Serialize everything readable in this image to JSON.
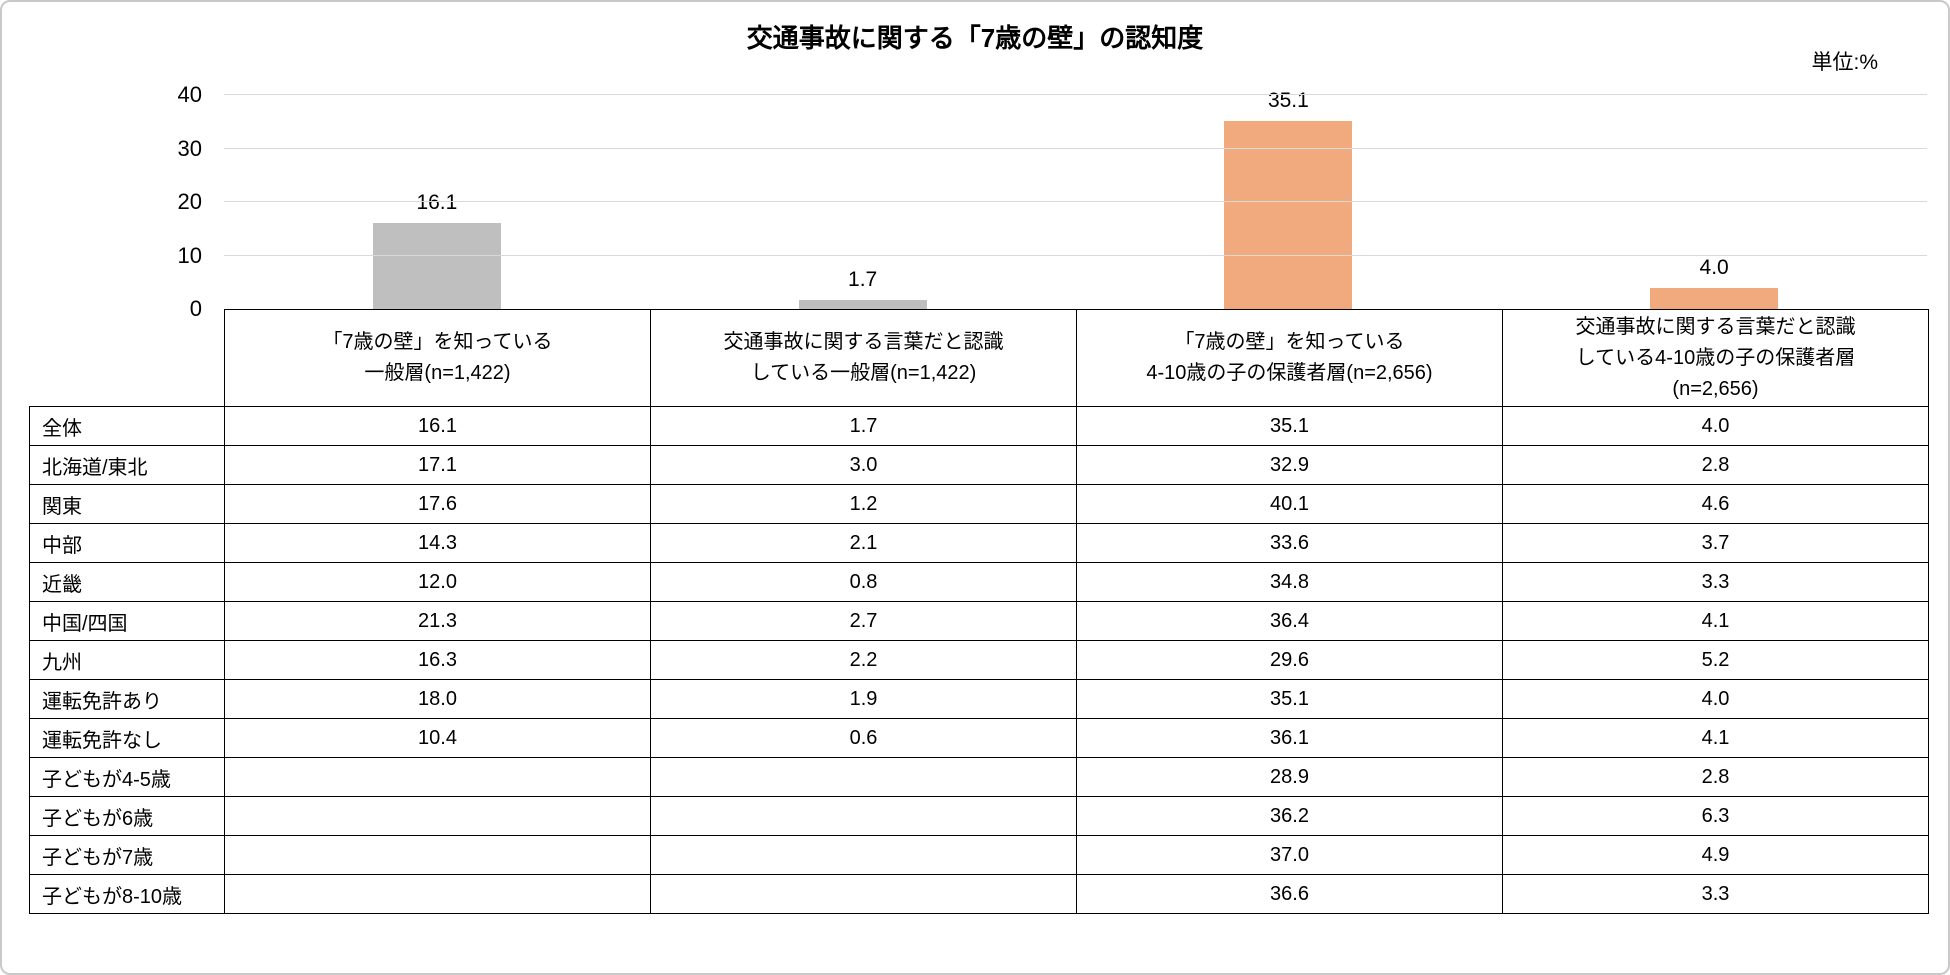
{
  "page": {
    "title": "交通事故に関する「7歳の壁」の認知度",
    "unit_label": "単位:%"
  },
  "chart_data": {
    "type": "bar",
    "title": "交通事故に関する「7歳の壁」の認知度",
    "unit": "単位:%",
    "categories": [
      "「7歳の壁」を知っている一般層(n=1,422)",
      "交通事故に関する言葉だと認識している一般層(n=1,422)",
      "「7歳の壁」を知っている4-10歳の子の保護者層(n=2,656)",
      "交通事故に関する言葉だと認識している4-10歳の子の保護者層(n=2,656)"
    ],
    "values": [
      16.1,
      1.7,
      35.1,
      4.0
    ],
    "bar_colors": [
      "#BFBFBF",
      "#BFBFBF",
      "#F1A97E",
      "#F1A97E"
    ],
    "ylim": [
      0,
      40
    ],
    "yticks": [
      0,
      10,
      20,
      30,
      40
    ],
    "grid": true,
    "gridline_color": "#D9D9D9",
    "legend": "none"
  },
  "table": {
    "header_lines": [
      [
        "「7歳の壁」を知っている",
        "一般層(n=1,422)"
      ],
      [
        "交通事故に関する言葉だと認識",
        "している一般層(n=1,422)"
      ],
      [
        "「7歳の壁」を知っている",
        "4-10歳の子の保護者層(n=2,656)"
      ],
      [
        "交通事故に関する言葉だと認識",
        "している4-10歳の子の保護者層",
        "(n=2,656)"
      ]
    ],
    "rows": [
      {
        "label": "全体",
        "values": [
          "16.1",
          "1.7",
          "35.1",
          "4.0"
        ]
      },
      {
        "label": "北海道/東北",
        "values": [
          "17.1",
          "3.0",
          "32.9",
          "2.8"
        ]
      },
      {
        "label": "関東",
        "values": [
          "17.6",
          "1.2",
          "40.1",
          "4.6"
        ]
      },
      {
        "label": "中部",
        "values": [
          "14.3",
          "2.1",
          "33.6",
          "3.7"
        ]
      },
      {
        "label": "近畿",
        "values": [
          "12.0",
          "0.8",
          "34.8",
          "3.3"
        ]
      },
      {
        "label": "中国/四国",
        "values": [
          "21.3",
          "2.7",
          "36.4",
          "4.1"
        ]
      },
      {
        "label": "九州",
        "values": [
          "16.3",
          "2.2",
          "29.6",
          "5.2"
        ]
      },
      {
        "label": "運転免許あり",
        "values": [
          "18.0",
          "1.9",
          "35.1",
          "4.0"
        ]
      },
      {
        "label": "運転免許なし",
        "values": [
          "10.4",
          "0.6",
          "36.1",
          "4.1"
        ]
      },
      {
        "label": "子どもが4-5歳",
        "values": [
          "",
          "",
          "28.9",
          "2.8"
        ]
      },
      {
        "label": "子どもが6歳",
        "values": [
          "",
          "",
          "36.2",
          "6.3"
        ]
      },
      {
        "label": "子どもが7歳",
        "values": [
          "",
          "",
          "37.0",
          "4.9"
        ]
      },
      {
        "label": "子どもが8-10歳",
        "values": [
          "",
          "",
          "36.6",
          "3.3"
        ]
      }
    ]
  }
}
